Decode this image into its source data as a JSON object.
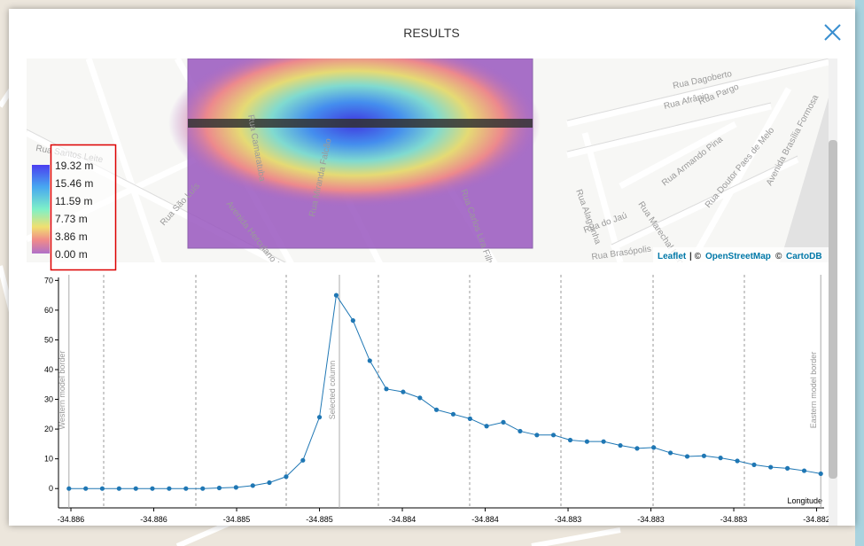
{
  "modal": {
    "title": "RESULTS"
  },
  "map": {
    "legend": [
      "19.32 m",
      "15.46 m",
      "11.59 m",
      "7.73 m",
      "3.86 m",
      "0.00 m"
    ],
    "attribution": [
      "Leaflet",
      "| ©",
      "OpenStreetMap",
      "©",
      "CartoDB"
    ],
    "street_labels": [
      "Rua Dagoberto",
      "Rua Afrânio",
      "Rua Pargo",
      "Rua Marechal Hermes",
      "Rua Alagoinha",
      "Rua Armando Pina",
      "Rua Doutor Paes de Melo",
      "Avenida Brasília Formosa",
      "Rua do Jaú",
      "Rua Brasópolis",
      "Avenida Herculano Bandeira",
      "Rua São Luís",
      "Rua Santos Leite",
      "Rua Miranda Falcão",
      "Rua Carlos Lira Filho",
      "Rua Camaratuba"
    ]
  },
  "chart_data": {
    "type": "line",
    "x": [
      -34.88601,
      -34.885925,
      -34.885841,
      -34.885756,
      -34.885671,
      -34.885587,
      -34.885502,
      -34.885417,
      -34.885332,
      -34.885248,
      -34.885163,
      -34.885078,
      -34.884994,
      -34.884909,
      -34.884824,
      -34.88474,
      -34.884655,
      -34.88457,
      -34.884485,
      -34.884401,
      -34.884316,
      -34.884231,
      -34.884147,
      -34.884062,
      -34.883977,
      -34.883893,
      -34.883808,
      -34.883723,
      -34.883638,
      -34.883554,
      -34.883469,
      -34.883384,
      -34.8833,
      -34.883215,
      -34.88313,
      -34.883046,
      -34.882961,
      -34.882876,
      -34.882791,
      -34.882707,
      -34.882622,
      -34.882537,
      -34.882453,
      -34.882368,
      -34.882283,
      -34.882199
    ],
    "series": [
      {
        "color": "#1f77b4",
        "values": [
          0,
          0,
          0,
          0,
          0,
          0,
          0,
          0,
          0,
          0.2,
          0.4,
          1,
          2,
          4,
          9.5,
          24,
          65,
          56.5,
          43,
          33.5,
          32.5,
          30.5,
          26.5,
          25,
          23.5,
          21,
          22.3,
          19.3,
          18,
          18,
          16.3,
          15.8,
          15.8,
          14.5,
          13.5,
          13.8,
          12,
          10.8,
          11,
          10.3,
          9.3,
          8,
          7.2,
          6.8,
          6,
          5
        ]
      }
    ],
    "xlim": [
      -34.886063,
      -34.882182
    ],
    "ylim": [
      -6.5,
      71
    ],
    "xticks": [
      {
        "value": -34.886,
        "label": "-34.886"
      },
      {
        "value": -34.88558,
        "label": "-34.886"
      },
      {
        "value": -34.88516,
        "label": "-34.885"
      },
      {
        "value": -34.88474,
        "label": "-34.885"
      },
      {
        "value": -34.88432,
        "label": "-34.884"
      },
      {
        "value": -34.8839,
        "label": "-34.884"
      },
      {
        "value": -34.88348,
        "label": "-34.883"
      },
      {
        "value": -34.88306,
        "label": "-34.883"
      },
      {
        "value": -34.88264,
        "label": "-34.883"
      },
      {
        "value": -34.88222,
        "label": "-34.882"
      }
    ],
    "yticks": [
      0,
      10,
      20,
      30,
      40,
      50,
      60,
      70
    ],
    "xlabel": "Longitude",
    "annotations": [
      {
        "text": "Western model border",
        "x": -34.88601
      },
      {
        "text": "Selected column",
        "x": -34.884639
      },
      {
        "text": "Eastern model border",
        "x": -34.882199
      }
    ]
  }
}
